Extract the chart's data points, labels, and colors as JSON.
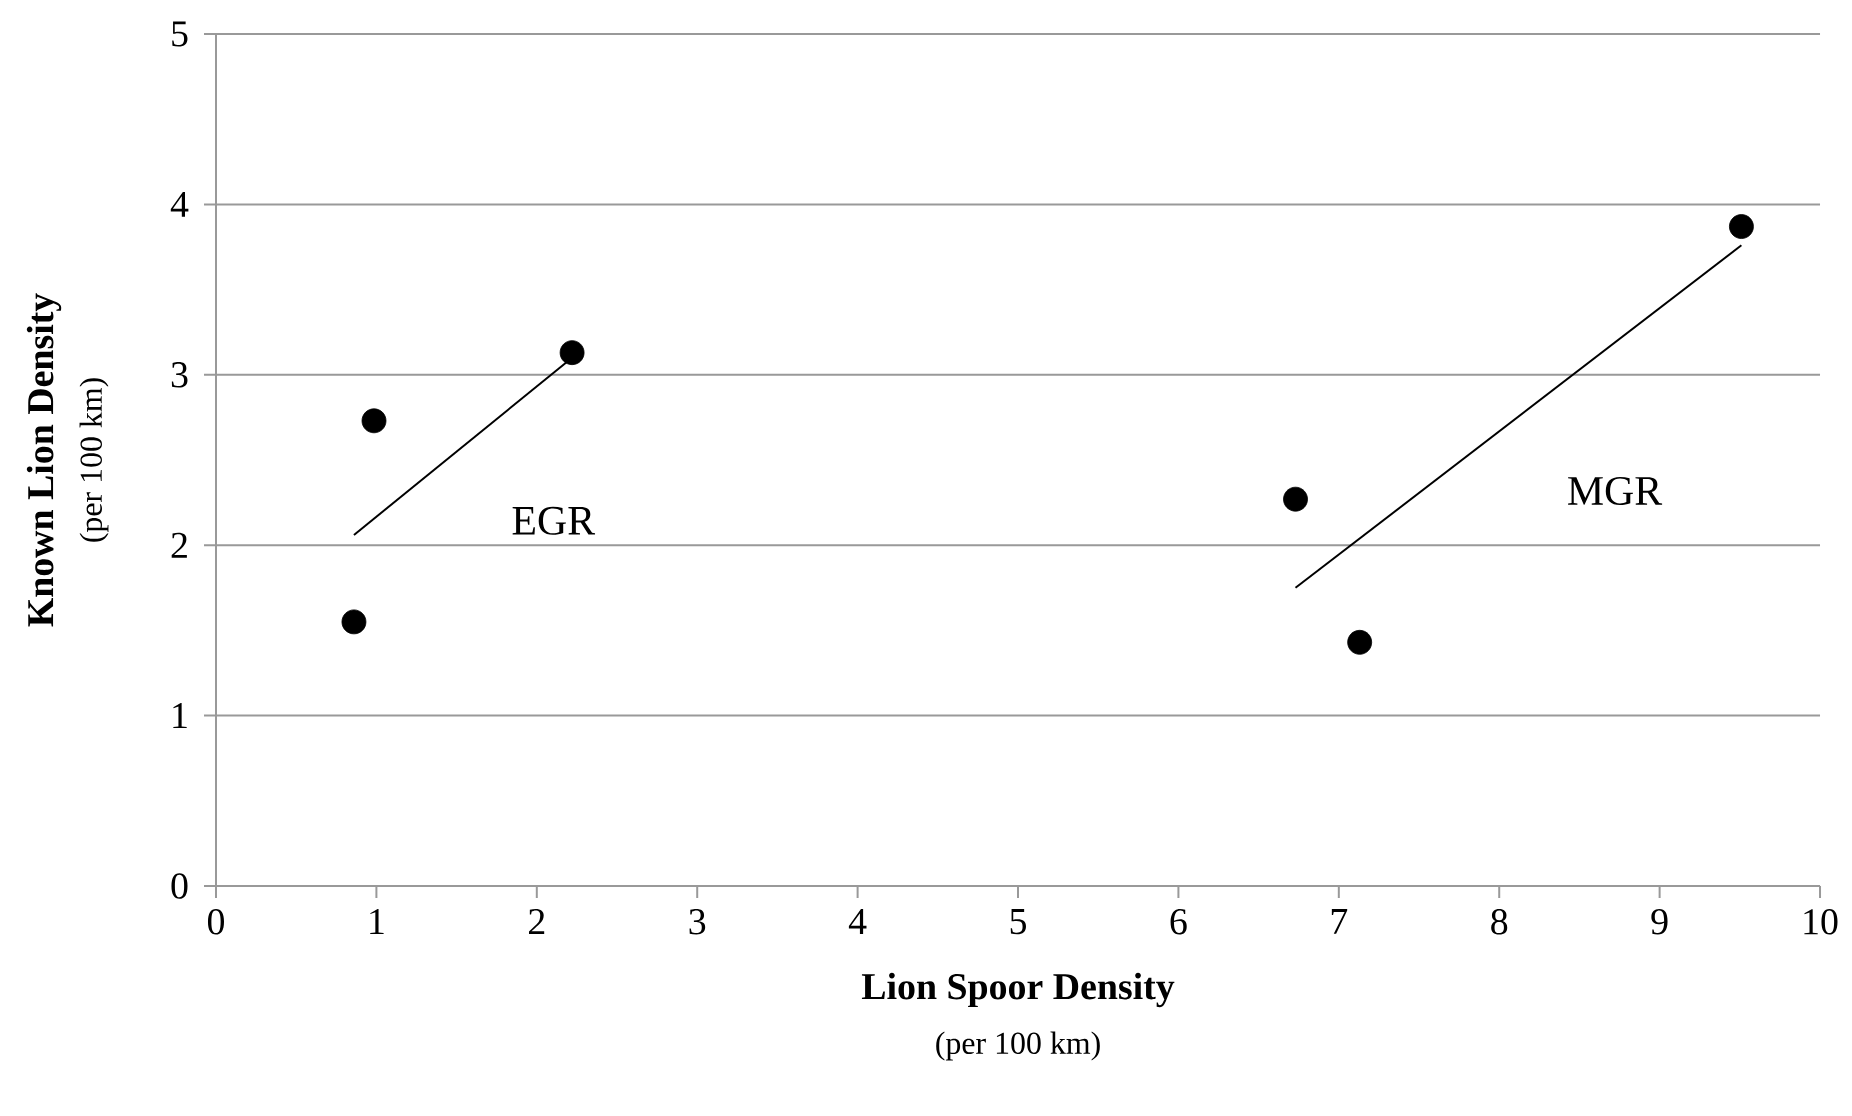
{
  "chart_data": {
    "type": "scatter",
    "xlabel": "Lion Spoor Density",
    "ylabel": "Known Lion Density",
    "xlim": [
      0,
      10
    ],
    "xticks": [
      0,
      1,
      2,
      3,
      4,
      5,
      6,
      7,
      8,
      9,
      10
    ],
    "ylim": [
      0,
      5
    ],
    "yticks": [
      0,
      1,
      2,
      3,
      4,
      5
    ],
    "grid": "y",
    "series": [
      {
        "color": "#000000",
        "marker": "circle",
        "x": [
          0.86,
          0.985,
          2.22,
          6.73,
          7.13,
          9.51
        ],
        "values": [
          1.55,
          2.73,
          3.13,
          2.27,
          1.43,
          3.87
        ]
      },
      {
        "name": "EGR",
        "type": "line",
        "color": "#000000",
        "marker": "none",
        "x": [
          0.86,
          2.22
        ],
        "values": [
          2.06,
          3.1
        ]
      },
      {
        "name": "MGR",
        "type": "line",
        "color": "#000000",
        "marker": "none",
        "x": [
          6.73,
          9.51
        ],
        "values": [
          1.75,
          3.76
        ]
      }
    ],
    "annotations": [
      "(per 100 km)",
      "(per 100 km)"
    ]
  }
}
